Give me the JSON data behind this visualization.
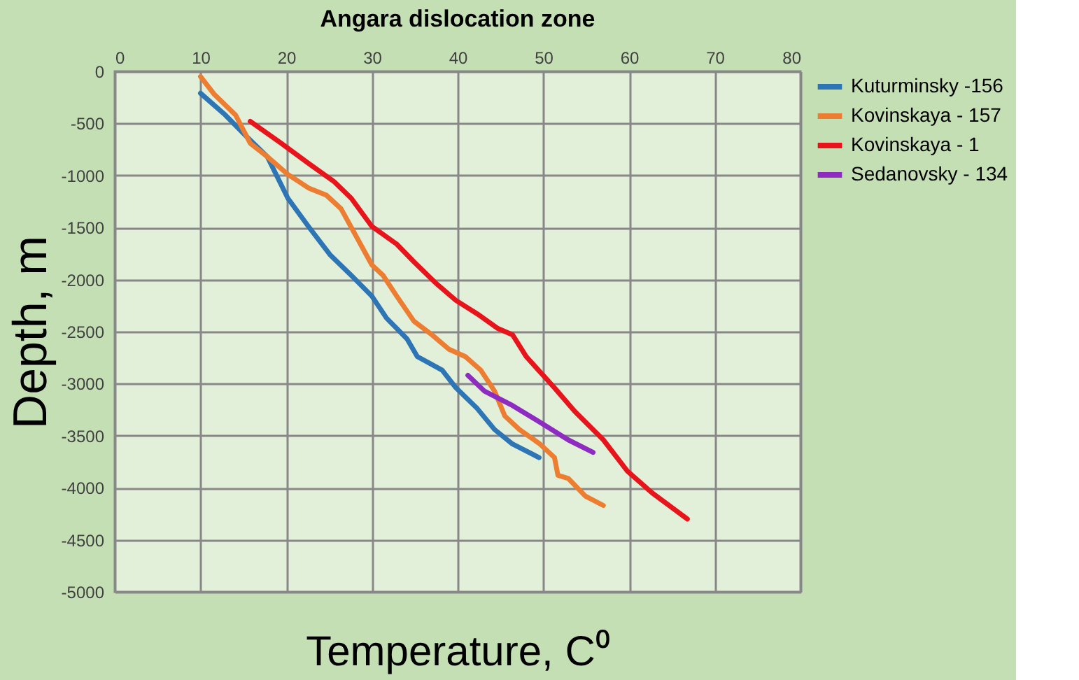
{
  "chart_data": {
    "type": "line",
    "title": "Angara dislocation zone",
    "xlabel": "Temperature, C⁰",
    "ylabel": "Depth, m",
    "xlim": [
      0,
      80
    ],
    "xticks": [
      0,
      10,
      20,
      30,
      40,
      50,
      60,
      70,
      80
    ],
    "ylim": [
      -5000,
      0
    ],
    "yticks": [
      -5000,
      -4500,
      -4000,
      -3500,
      -3000,
      -2500,
      -2000,
      -1500,
      -1000,
      -500,
      0
    ],
    "grid": true,
    "legend": "right",
    "marker": "none",
    "line_style": "solid",
    "series": [
      {
        "name": "Kuturminsky -156",
        "color": "#2e75b6",
        "x": [
          10.0,
          12.9,
          15.3,
          17.8,
          19.0,
          20.2,
          22.6,
          25.1,
          27.6,
          30.0,
          31.7,
          34.1,
          35.3,
          38.2,
          39.8,
          42.3,
          44.3,
          46.4,
          49.5
        ],
        "values": [
          -210,
          -420,
          -620,
          -820,
          -1020,
          -1220,
          -1490,
          -1760,
          -1960,
          -2160,
          -2370,
          -2570,
          -2740,
          -2870,
          -3040,
          -3240,
          -3440,
          -3580,
          -3710
        ]
      },
      {
        "name": "Kovinskaya - 157",
        "color": "#ed7d31",
        "x": [
          10.0,
          11.6,
          14.1,
          15.8,
          17.8,
          20.2,
          22.6,
          24.7,
          26.4,
          28.0,
          30.0,
          31.3,
          32.9,
          34.9,
          37.0,
          39.0,
          40.9,
          42.7,
          44.3,
          45.5,
          47.2,
          49.6,
          51.3,
          51.7,
          52.9,
          54.9,
          57.0
        ],
        "values": [
          -50,
          -220,
          -420,
          -690,
          -820,
          -990,
          -1120,
          -1190,
          -1320,
          -1560,
          -1860,
          -1960,
          -2160,
          -2400,
          -2530,
          -2670,
          -2740,
          -2870,
          -3070,
          -3310,
          -3440,
          -3580,
          -3710,
          -3880,
          -3910,
          -4080,
          -4170
        ]
      },
      {
        "name": "Kovinskaya - 1",
        "color": "#e8141b",
        "x": [
          15.8,
          19.4,
          22.7,
          25.6,
          27.6,
          30.0,
          32.9,
          34.9,
          37.4,
          39.8,
          42.3,
          44.7,
          46.4,
          48.0,
          51.3,
          53.7,
          57.0,
          59.8,
          62.7,
          66.8
        ],
        "values": [
          -480,
          -690,
          -890,
          -1060,
          -1220,
          -1490,
          -1660,
          -1830,
          -2030,
          -2200,
          -2330,
          -2470,
          -2530,
          -2740,
          -3040,
          -3270,
          -3540,
          -3840,
          -4050,
          -4300
        ]
      },
      {
        "name": "Sedanovsky - 134",
        "color": "#8e2bc0",
        "x": [
          41.2,
          43.1,
          46.4,
          49.6,
          52.9,
          55.8
        ],
        "values": [
          -2920,
          -3070,
          -3210,
          -3370,
          -3540,
          -3660
        ]
      }
    ]
  }
}
